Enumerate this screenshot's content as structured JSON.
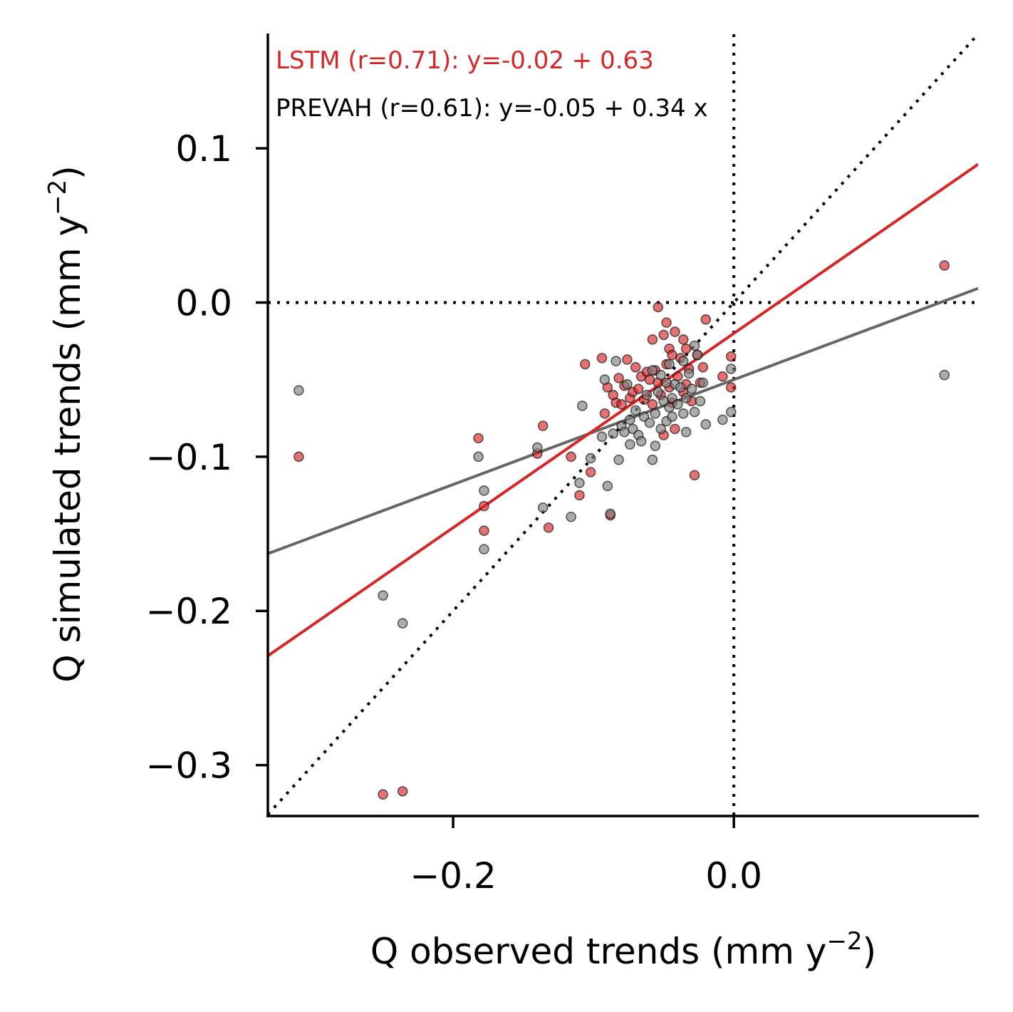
{
  "chart_data": {
    "type": "scatter",
    "xlabel": {
      "text": "Q observed trends (mm y",
      "sup": "−2",
      "close": ")"
    },
    "ylabel": {
      "text": "Q simulated trends (mm y",
      "sup": "−2",
      "close": ")"
    },
    "xlim": [
      -0.332,
      0.174
    ],
    "ylim": [
      -0.333,
      0.174
    ],
    "x_ticks": [
      {
        "value": -0.2,
        "label": "−0.2"
      },
      {
        "value": 0.0,
        "label": "0.0"
      }
    ],
    "y_ticks": [
      {
        "value": 0.1,
        "label": "0.1"
      },
      {
        "value": 0.0,
        "label": "0.0"
      },
      {
        "value": -0.1,
        "label": "−0.1"
      },
      {
        "value": -0.2,
        "label": "−0.2"
      },
      {
        "value": -0.3,
        "label": "−0.3"
      }
    ],
    "grid": false,
    "reference_lines": [
      {
        "kind": "vertical",
        "x": 0.0,
        "style": "dotted"
      },
      {
        "kind": "horizontal",
        "y": 0.0,
        "style": "dotted"
      },
      {
        "kind": "identity",
        "style": "dotted"
      }
    ],
    "annotations": [
      {
        "text": "LSTM (r=0.71): y=-0.02 + 0.63",
        "color": "#d62728"
      },
      {
        "text": "PREVAH (r=0.61): y=-0.05 + 0.34 x",
        "color": "#000000"
      }
    ],
    "series": [
      {
        "color": "#d62728",
        "fit": {
          "intercept": -0.02,
          "slope": 0.63
        },
        "points": [
          [
            -0.31,
            -0.1
          ],
          [
            -0.25,
            -0.319
          ],
          [
            -0.236,
            -0.317
          ],
          [
            -0.182,
            -0.088
          ],
          [
            -0.178,
            -0.132
          ],
          [
            -0.178,
            -0.148
          ],
          [
            -0.14,
            -0.098
          ],
          [
            -0.136,
            -0.08
          ],
          [
            -0.132,
            -0.146
          ],
          [
            -0.116,
            -0.1
          ],
          [
            -0.11,
            -0.125
          ],
          [
            -0.106,
            -0.04
          ],
          [
            -0.102,
            -0.11
          ],
          [
            -0.094,
            -0.036
          ],
          [
            -0.092,
            -0.072
          ],
          [
            -0.09,
            -0.055
          ],
          [
            -0.088,
            -0.138
          ],
          [
            -0.086,
            -0.06
          ],
          [
            -0.084,
            -0.065
          ],
          [
            -0.082,
            -0.049
          ],
          [
            -0.08,
            -0.066
          ],
          [
            -0.078,
            -0.054
          ],
          [
            -0.076,
            -0.037
          ],
          [
            -0.074,
            -0.062
          ],
          [
            -0.072,
            -0.058
          ],
          [
            -0.07,
            -0.042
          ],
          [
            -0.068,
            -0.056
          ],
          [
            -0.066,
            -0.048
          ],
          [
            -0.064,
            -0.063
          ],
          [
            -0.062,
            -0.045
          ],
          [
            -0.06,
            -0.05
          ],
          [
            -0.058,
            -0.066
          ],
          [
            -0.058,
            -0.024
          ],
          [
            -0.056,
            -0.044
          ],
          [
            -0.054,
            -0.003
          ],
          [
            -0.054,
            -0.052
          ],
          [
            -0.052,
            -0.06
          ],
          [
            -0.05,
            -0.021
          ],
          [
            -0.05,
            -0.086
          ],
          [
            -0.048,
            -0.013
          ],
          [
            -0.048,
            -0.04
          ],
          [
            -0.046,
            -0.03
          ],
          [
            -0.046,
            -0.055
          ],
          [
            -0.044,
            -0.034
          ],
          [
            -0.044,
            -0.065
          ],
          [
            -0.042,
            -0.019
          ],
          [
            -0.042,
            -0.082
          ],
          [
            -0.04,
            -0.048
          ],
          [
            -0.038,
            -0.036
          ],
          [
            -0.036,
            -0.024
          ],
          [
            -0.036,
            -0.058
          ],
          [
            -0.034,
            -0.03
          ],
          [
            -0.034,
            -0.053
          ],
          [
            -0.032,
            -0.043
          ],
          [
            -0.03,
            -0.064
          ],
          [
            -0.028,
            -0.112
          ],
          [
            -0.026,
            -0.034
          ],
          [
            -0.024,
            -0.052
          ],
          [
            -0.022,
            -0.042
          ],
          [
            -0.02,
            -0.011
          ],
          [
            -0.008,
            -0.048
          ],
          [
            -0.002,
            -0.035
          ],
          [
            -0.002,
            -0.055
          ],
          [
            0.15,
            0.024
          ]
        ]
      },
      {
        "color": "#808080",
        "fit": {
          "intercept": -0.05,
          "slope": 0.34
        },
        "points": [
          [
            -0.31,
            -0.057
          ],
          [
            -0.25,
            -0.19
          ],
          [
            -0.236,
            -0.208
          ],
          [
            -0.182,
            -0.1
          ],
          [
            -0.178,
            -0.122
          ],
          [
            -0.178,
            -0.16
          ],
          [
            -0.14,
            -0.094
          ],
          [
            -0.136,
            -0.133
          ],
          [
            -0.116,
            -0.139
          ],
          [
            -0.11,
            -0.117
          ],
          [
            -0.108,
            -0.067
          ],
          [
            -0.102,
            -0.101
          ],
          [
            -0.094,
            -0.087
          ],
          [
            -0.092,
            -0.05
          ],
          [
            -0.09,
            -0.119
          ],
          [
            -0.088,
            -0.137
          ],
          [
            -0.086,
            -0.085
          ],
          [
            -0.084,
            -0.038
          ],
          [
            -0.082,
            -0.102
          ],
          [
            -0.08,
            -0.08
          ],
          [
            -0.078,
            -0.084
          ],
          [
            -0.076,
            -0.053
          ],
          [
            -0.074,
            -0.092
          ],
          [
            -0.074,
            -0.076
          ],
          [
            -0.072,
            -0.082
          ],
          [
            -0.07,
            -0.07
          ],
          [
            -0.068,
            -0.086
          ],
          [
            -0.066,
            -0.09
          ],
          [
            -0.064,
            -0.074
          ],
          [
            -0.062,
            -0.06
          ],
          [
            -0.06,
            -0.078
          ],
          [
            -0.058,
            -0.102
          ],
          [
            -0.058,
            -0.044
          ],
          [
            -0.056,
            -0.072
          ],
          [
            -0.056,
            -0.093
          ],
          [
            -0.054,
            -0.058
          ],
          [
            -0.052,
            -0.047
          ],
          [
            -0.052,
            -0.082
          ],
          [
            -0.05,
            -0.064
          ],
          [
            -0.048,
            -0.077
          ],
          [
            -0.048,
            -0.052
          ],
          [
            -0.046,
            -0.068
          ],
          [
            -0.046,
            -0.04
          ],
          [
            -0.044,
            -0.062
          ],
          [
            -0.044,
            -0.074
          ],
          [
            -0.042,
            -0.053
          ],
          [
            -0.04,
            -0.066
          ],
          [
            -0.038,
            -0.055
          ],
          [
            -0.036,
            -0.072
          ],
          [
            -0.036,
            -0.038
          ],
          [
            -0.034,
            -0.084
          ],
          [
            -0.034,
            -0.062
          ],
          [
            -0.032,
            -0.046
          ],
          [
            -0.03,
            -0.056
          ],
          [
            -0.028,
            -0.071
          ],
          [
            -0.028,
            -0.028
          ],
          [
            -0.026,
            -0.034
          ],
          [
            -0.024,
            -0.064
          ],
          [
            -0.022,
            -0.052
          ],
          [
            -0.02,
            -0.079
          ],
          [
            -0.008,
            -0.076
          ],
          [
            -0.002,
            -0.043
          ],
          [
            -0.002,
            -0.071
          ],
          [
            0.15,
            -0.047
          ]
        ]
      }
    ]
  }
}
